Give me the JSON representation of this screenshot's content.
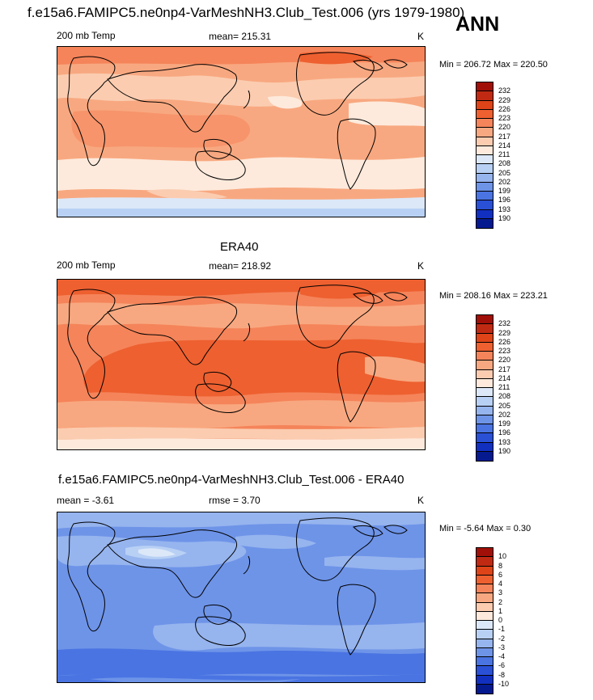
{
  "title": "f.e15a6.FAMIPC5.ne0np4-VarMeshNH3.Club_Test.006 (yrs 1979-1980)",
  "season": "ANN",
  "panels": [
    {
      "id": "model",
      "variable": "200 mb Temp",
      "stat_label": "mean= 215.31",
      "units": "K",
      "minmax": "Min = 206.72 Max = 220.50",
      "colorbar": {
        "labels": [
          "232",
          "229",
          "226",
          "223",
          "220",
          "217",
          "214",
          "211",
          "208",
          "205",
          "202",
          "199",
          "196",
          "193",
          "190"
        ],
        "colors": [
          "#a01008",
          "#c02a12",
          "#de4418",
          "#ee6030",
          "#f5845a",
          "#f8a880",
          "#fbccb0",
          "#fdeadc",
          "#dce8f8",
          "#b8d0f4",
          "#96b4ee",
          "#6e94e8",
          "#4a74e2",
          "#2a50d6",
          "#1230c0",
          "#061a90"
        ]
      }
    },
    {
      "id": "obs",
      "title": "ERA40",
      "variable": "200 mb Temp",
      "stat_label": "mean= 218.92",
      "units": "K",
      "minmax": "Min = 208.16 Max = 223.21",
      "colorbar": {
        "labels": [
          "232",
          "229",
          "226",
          "223",
          "220",
          "217",
          "214",
          "211",
          "208",
          "205",
          "202",
          "199",
          "196",
          "193",
          "190"
        ],
        "colors": [
          "#a01008",
          "#c02a12",
          "#de4418",
          "#ee6030",
          "#f5845a",
          "#f8a880",
          "#fbccb0",
          "#fdeadc",
          "#dce8f8",
          "#b8d0f4",
          "#96b4ee",
          "#6e94e8",
          "#4a74e2",
          "#2a50d6",
          "#1230c0",
          "#061a90"
        ]
      }
    },
    {
      "id": "diff",
      "title": "f.e15a6.FAMIPC5.ne0np4-VarMeshNH3.Club_Test.006 - ERA40",
      "stat_label": "mean =  -3.61",
      "rmse_label": "rmse =   3.70",
      "units": "K",
      "minmax": "Min =  -5.64 Max =   0.30",
      "colorbar": {
        "labels": [
          "10",
          "8",
          "6",
          "4",
          "3",
          "2",
          "1",
          "0",
          "-1",
          "-2",
          "-3",
          "-4",
          "-6",
          "-8",
          "-10"
        ],
        "colors": [
          "#a01008",
          "#c02a12",
          "#de4418",
          "#ee6030",
          "#f5845a",
          "#f8a880",
          "#fbccb0",
          "#fdeadc",
          "#dce8f8",
          "#b8d0f4",
          "#96b4ee",
          "#6e94e8",
          "#4a74e2",
          "#2a50d6",
          "#1230c0",
          "#061a90"
        ]
      }
    }
  ],
  "colors": {
    "land_outline": "#000000",
    "frame": "#000000"
  }
}
